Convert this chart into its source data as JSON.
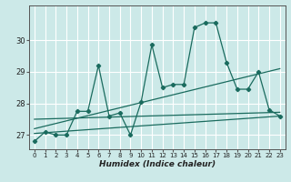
{
  "xlabel": "Humidex (Indice chaleur)",
  "bg_color": "#cce9e8",
  "grid_color": "#ffffff",
  "line_color": "#1a6b5e",
  "xlim": [
    -0.5,
    23.5
  ],
  "ylim": [
    26.55,
    31.1
  ],
  "yticks": [
    27,
    28,
    29,
    30
  ],
  "xtick_labels": [
    "0",
    "1",
    "2",
    "3",
    "4",
    "5",
    "6",
    "7",
    "8",
    "9",
    "10",
    "11",
    "12",
    "13",
    "14",
    "15",
    "16",
    "17",
    "18",
    "19",
    "20",
    "21",
    "22",
    "23"
  ],
  "series1_x": [
    0,
    1,
    2,
    3,
    4,
    5,
    6,
    7,
    8,
    9,
    10,
    11,
    12,
    13,
    14,
    15,
    16,
    17,
    18,
    19,
    20,
    21,
    22,
    23
  ],
  "series1_y": [
    26.8,
    27.1,
    27.0,
    27.0,
    27.75,
    27.75,
    29.2,
    27.6,
    27.7,
    27.0,
    28.05,
    29.85,
    28.5,
    28.6,
    28.6,
    30.4,
    30.55,
    30.55,
    29.3,
    28.45,
    28.45,
    29.0,
    27.8,
    27.6
  ],
  "trend1_x": [
    0,
    23
  ],
  "trend1_y": [
    27.05,
    27.6
  ],
  "trend2_x": [
    0,
    23
  ],
  "trend2_y": [
    27.2,
    29.1
  ],
  "trend3_x": [
    0,
    23
  ],
  "trend3_y": [
    27.5,
    27.72
  ]
}
